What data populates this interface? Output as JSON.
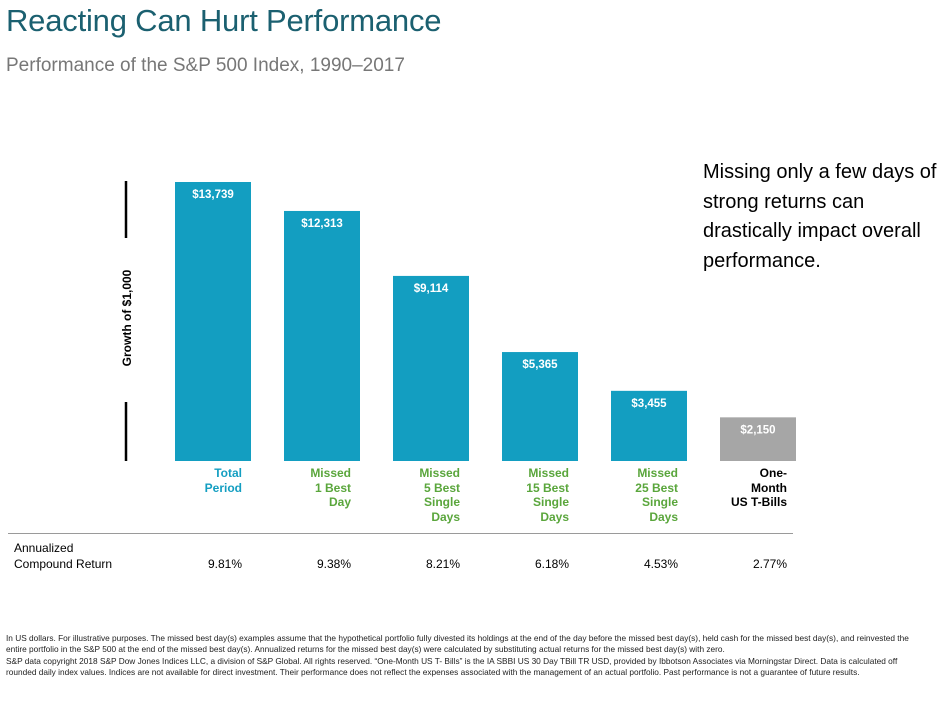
{
  "title": "Reacting Can Hurt Performance",
  "subtitle": "Performance of the S&P 500 Index, 1990–2017",
  "callout": "Missing only a few days of strong returns can drastically impact overall performance.",
  "chart_data": {
    "type": "bar",
    "ylabel": "Growth of $1,000",
    "categories": [
      "Total\nPeriod",
      "Missed\n1 Best\nDay",
      "Missed\n5 Best\nSingle\nDays",
      "Missed\n15 Best\nSingle\nDays",
      "Missed\n25 Best\nSingle\nDays",
      "One-\nMonth\nUS T-Bills"
    ],
    "values": [
      13739,
      12313,
      9114,
      5365,
      3455,
      2150
    ],
    "data_labels": [
      "$13,739",
      "$12,313",
      "$9,114",
      "$5,365",
      "$3,455",
      "$2,150"
    ],
    "bar_colors": [
      "#139ec1",
      "#139ec1",
      "#139ec1",
      "#139ec1",
      "#139ec1",
      "#a6a6a6"
    ],
    "label_colors": [
      "#139ec1",
      "#5aa63c",
      "#5aa63c",
      "#5aa63c",
      "#5aa63c",
      "#000000"
    ],
    "ylim": [
      0,
      14000
    ],
    "grid": false
  },
  "returns_row": {
    "label": "Annualized\nCompound Return",
    "values": [
      "9.81%",
      "9.38%",
      "8.21%",
      "6.18%",
      "4.53%",
      "2.77%"
    ]
  },
  "footnote": {
    "p1": "In US dollars. For illustrative purposes. The missed best day(s) examples assume that the hypothetical portfolio fully divested its holdings at the end of the day before the missed best day(s), held cash for the missed best day(s), and reinvested the entire portfolio in the S&P 500 at the end of the missed best day(s). Annualized returns for the missed best day(s) were calculated by substituting actual returns for the missed best day(s) with zero.",
    "p2": "S&P data copyright 2018 S&P Dow Jones Indices LLC, a division of S&P Global. All rights reserved. “One-Month US T- Bills” is the IA SBBI US 30 Day TBill TR USD, provided by Ibbotson Associates via Morningstar Direct. Data is calculated off rounded daily index values. Indices are not available for direct investment. Their performance does not reflect the expenses associated with the management of an actual portfolio. Past performance is not a guarantee of future results."
  }
}
